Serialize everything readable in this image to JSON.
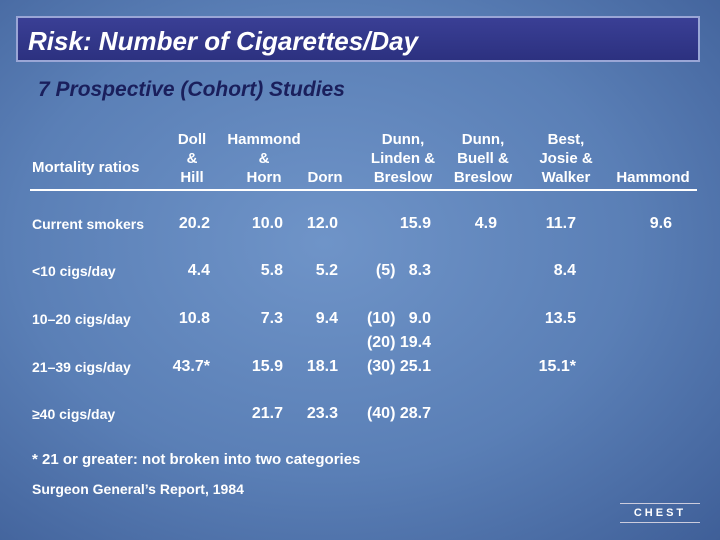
{
  "title": "Risk: Number of Cigarettes/Day",
  "subtitle": "7 Prospective (Cohort) Studies",
  "table": {
    "header": [
      [
        "Mortality ratios"
      ],
      [
        "Doll",
        "&",
        "Hill"
      ],
      [
        "Hammond",
        "&",
        "Horn"
      ],
      [
        "Dorn"
      ],
      [
        "Dunn,",
        "Linden &",
        "Breslow"
      ],
      [
        "Dunn,",
        "Buell &",
        "Breslow"
      ],
      [
        "Best,",
        "Josie &",
        "Walker"
      ],
      [
        "Hammond"
      ]
    ],
    "rows": [
      [
        "Current smokers",
        [
          "20.2"
        ],
        [
          "10.0"
        ],
        [
          "12.0"
        ],
        [
          "15.9"
        ],
        [
          "4.9"
        ],
        [
          "11.7"
        ],
        [
          "9.6"
        ]
      ],
      [
        "<10 cigs/day",
        [
          "4.4"
        ],
        [
          "5.8"
        ],
        [
          "5.2"
        ],
        [
          "(5)   8.3"
        ],
        null,
        [
          "8.4"
        ],
        null
      ],
      [
        "10–20 cigs/day",
        [
          "10.8"
        ],
        [
          "7.3"
        ],
        [
          "9.4"
        ],
        [
          "(10)   9.0"
        ],
        null,
        [
          "13.5"
        ],
        null
      ],
      [
        "21–39 cigs/day",
        [
          "43.7*"
        ],
        [
          "15.9"
        ],
        [
          "18.1"
        ],
        [
          "(20) 19.4",
          "(30) 25.1"
        ],
        null,
        [
          "15.1*"
        ],
        null
      ],
      [
        "≥40 cigs/day",
        null,
        [
          "21.7"
        ],
        [
          "23.3"
        ],
        [
          "(40) 28.7"
        ],
        null,
        null,
        null
      ]
    ]
  },
  "footnote": "* 21 or greater: not broken into two categories",
  "source": "Surgeon General’s Report, 1984",
  "logo": "CHEST"
}
